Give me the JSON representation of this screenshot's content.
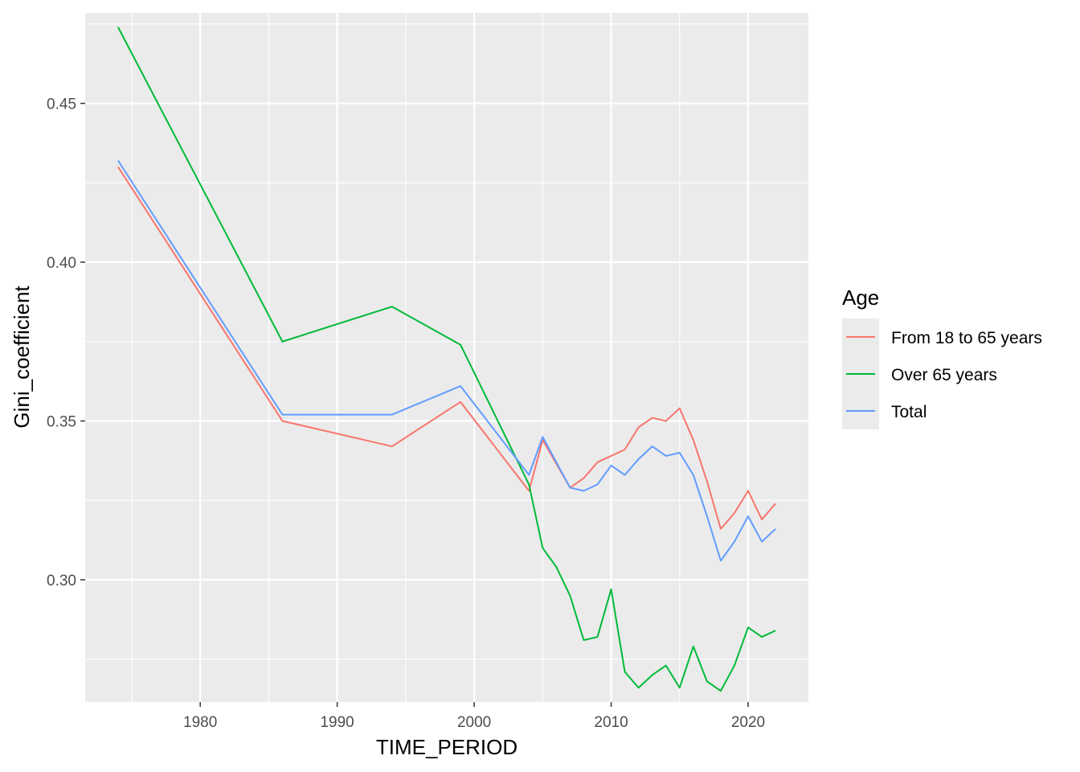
{
  "chart_data": {
    "type": "line",
    "xlabel": "TIME_PERIOD",
    "ylabel": "Gini_coefficient",
    "xlim": [
      1971.6,
      2024.4
    ],
    "ylim": [
      0.2615,
      0.4785
    ],
    "x_ticks": [
      1980,
      1990,
      2000,
      2010,
      2020
    ],
    "x_tick_labels": [
      "1980",
      "1990",
      "2000",
      "2010",
      "2020"
    ],
    "x_minor_ticks": [
      1975,
      1985,
      1995,
      2005,
      2015
    ],
    "y_ticks": [
      0.3,
      0.35,
      0.4,
      0.45
    ],
    "y_tick_labels": [
      "0.30",
      "0.35",
      "0.40",
      "0.45"
    ],
    "y_minor_ticks": [
      0.275,
      0.325,
      0.375,
      0.425,
      0.475
    ],
    "grid": true,
    "background": "#EBEBEB",
    "legend": {
      "title": "Age",
      "position": "right"
    },
    "series": [
      {
        "name": "From 18 to 65 years",
        "color": "#F8766D",
        "x": [
          1974,
          1986,
          1994,
          1999,
          2004,
          2005,
          2007,
          2008,
          2009,
          2010,
          2011,
          2012,
          2013,
          2014,
          2015,
          2016,
          2017,
          2018,
          2019,
          2020,
          2021,
          2022
        ],
        "y": [
          0.43,
          0.35,
          0.342,
          0.356,
          0.328,
          0.344,
          0.329,
          0.332,
          0.337,
          0.339,
          0.341,
          0.348,
          0.351,
          0.35,
          0.354,
          0.344,
          0.331,
          0.316,
          0.321,
          0.328,
          0.319,
          0.324
        ]
      },
      {
        "name": "Over 65 years",
        "color": "#00BA38",
        "x": [
          1974,
          1986,
          1994,
          1999,
          2004,
          2005,
          2006,
          2007,
          2008,
          2009,
          2010,
          2011,
          2012,
          2013,
          2014,
          2015,
          2016,
          2017,
          2018,
          2019,
          2020,
          2021,
          2022
        ],
        "y": [
          0.474,
          0.375,
          0.386,
          0.374,
          0.33,
          0.31,
          0.304,
          0.295,
          0.281,
          0.282,
          0.297,
          0.271,
          0.266,
          0.27,
          0.273,
          0.266,
          0.279,
          0.268,
          0.265,
          0.273,
          0.285,
          0.282,
          0.284
        ]
      },
      {
        "name": "Total",
        "color": "#619CFF",
        "x": [
          1974,
          1986,
          1994,
          1999,
          2004,
          2005,
          2007,
          2008,
          2009,
          2010,
          2011,
          2012,
          2013,
          2014,
          2015,
          2016,
          2017,
          2018,
          2019,
          2020,
          2021,
          2022
        ],
        "y": [
          0.432,
          0.352,
          0.352,
          0.361,
          0.333,
          0.345,
          0.329,
          0.328,
          0.33,
          0.336,
          0.333,
          0.338,
          0.342,
          0.339,
          0.34,
          0.333,
          0.32,
          0.306,
          0.312,
          0.32,
          0.312,
          0.316
        ]
      }
    ]
  }
}
